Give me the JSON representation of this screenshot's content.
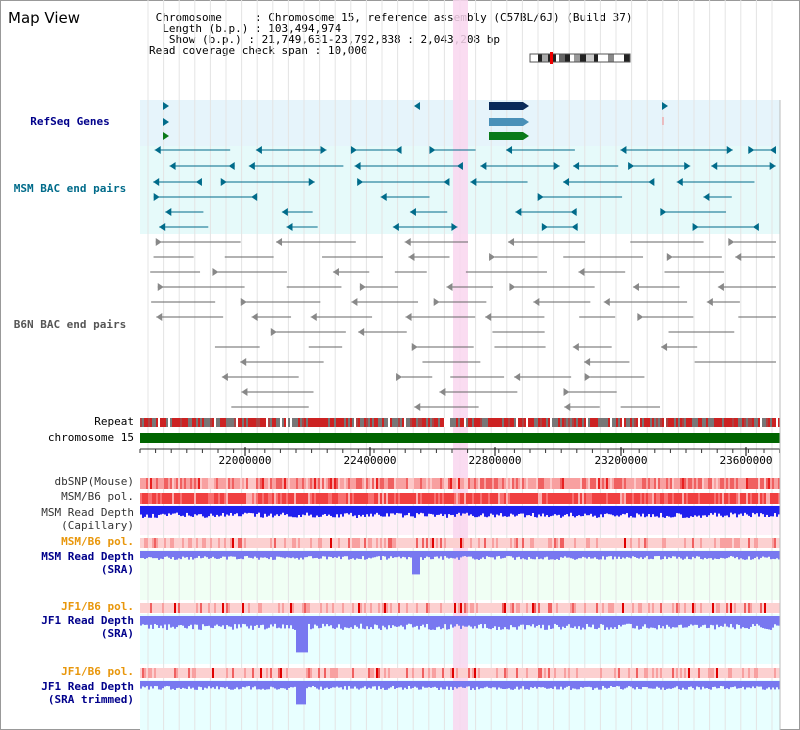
{
  "page": {
    "title": "Map View"
  },
  "header": {
    "chromosome_key": "Chromosome",
    "chromosome_value": "Chromosome 15, reference assembly (C57BL/6J) (Build 37)",
    "length_key": "Length (b.p.)",
    "length_value": "103,494,974",
    "show_key": "Show (b.p.)",
    "show_value": "21,749,631-23,792,838 : 2,043,208 bp",
    "coverage_key": "Read coverage check span",
    "coverage_value": "10,000"
  },
  "tracks": {
    "refseq_label": "RefSeq Genes",
    "msm_bac_label": "MSM BAC end pairs",
    "b6n_bac_label": "B6N BAC end pairs",
    "repeat_label": "Repeat",
    "chromosome_label": "chromosome 15",
    "dbsnp_label": "dbSNP(Mouse)",
    "msm_b6_pol_label": "MSM/B6 pol.",
    "msm_depth_cap_label_1": "MSM Read Depth",
    "msm_depth_cap_label_2": "(Capillary)",
    "msm_b6_pol2_label": "MSM/B6 pol.",
    "msm_depth_sra_label_1": "MSM Read Depth",
    "msm_depth_sra_label_2": "(SRA)",
    "jf1_pol_label": "JF1/B6 pol.",
    "jf1_depth_sra_label_1": "JF1 Read Depth",
    "jf1_depth_sra_label_2": "(SRA)",
    "jf1_pol2_label": "JF1/B6 pol.",
    "jf1_depth_trim_label_1": "JF1 Read Depth",
    "jf1_depth_trim_label_2": "(SRA trimmed)"
  },
  "axis": {
    "ticks": [
      "22000000",
      "22400000",
      "22800000",
      "23200000",
      "23600000"
    ]
  },
  "colors": {
    "refseq_bg": "#e6f4fb",
    "msm_bg": "#e6fafa",
    "msm_depth_bg": "#f0fff4",
    "jf1_bg": "#e8ffff",
    "highlight": "#f9d6ee",
    "navy": "#00008b",
    "teal": "#006b8a",
    "orange": "#e8960a",
    "gene_dark": "#0a2a5a",
    "gene_mid": "#4a90b8",
    "gene_green": "#0a7a1a",
    "chrom_green": "#006400",
    "depth_blue": "#2020ee",
    "depth_light": "#7878f0"
  }
}
